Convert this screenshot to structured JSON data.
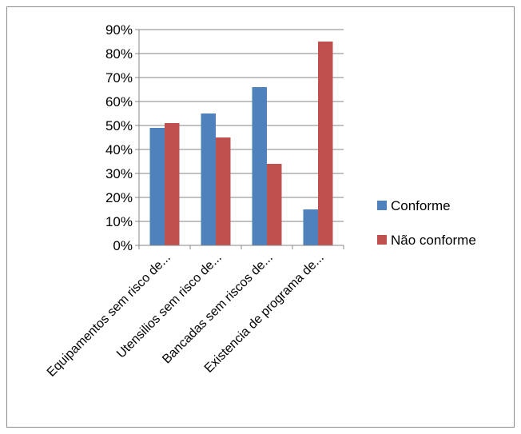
{
  "chart_data": {
    "type": "bar",
    "title": "",
    "xlabel": "",
    "ylabel": "",
    "categories": [
      "Equipamentos sem risco de...",
      "Utensilios sem risco de...",
      "Bancadas sem riscos de...",
      "Existencia de programa de..."
    ],
    "series": [
      {
        "name": "Conforme",
        "values": [
          49,
          55,
          66,
          15
        ],
        "color": "#4f81bd"
      },
      {
        "name": "Não conforme",
        "values": [
          51,
          45,
          34,
          85
        ],
        "color": "#c0504d"
      }
    ],
    "ylim": [
      0,
      90
    ],
    "y_ticks": [
      "0%",
      "10%",
      "20%",
      "30%",
      "40%",
      "50%",
      "60%",
      "70%",
      "80%",
      "90%"
    ],
    "grid": true,
    "legend_position": "right"
  }
}
